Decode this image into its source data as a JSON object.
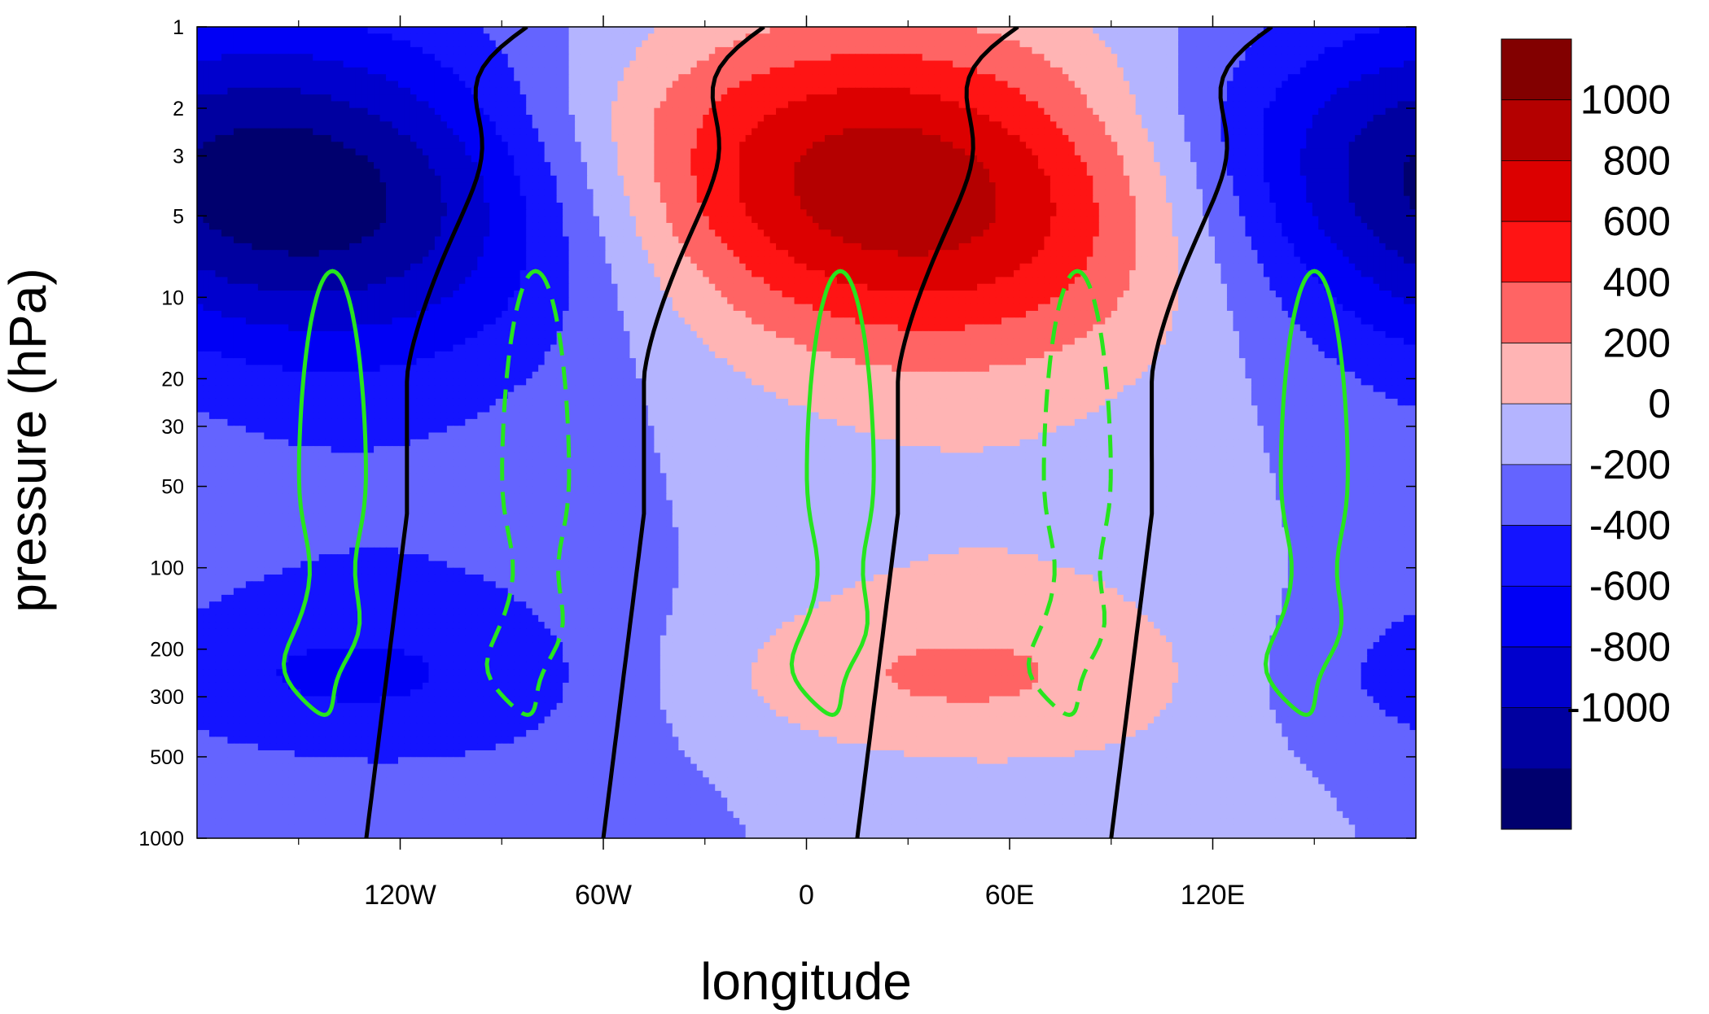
{
  "chart_data": {
    "type": "heatmap",
    "title": "",
    "xlabel": "longitude",
    "ylabel": "pressure (hPa)",
    "x_range": [
      -180,
      180
    ],
    "x_ticks": [
      {
        "value": -120,
        "label": "120W"
      },
      {
        "value": -60,
        "label": "60W"
      },
      {
        "value": 0,
        "label": "0"
      },
      {
        "value": 60,
        "label": "60E"
      },
      {
        "value": 120,
        "label": "120E"
      }
    ],
    "x_minor_ticks": [
      -150,
      -90,
      -30,
      30,
      90,
      150
    ],
    "y_scale": "log",
    "y_range": [
      1000,
      1
    ],
    "y_ticks": [
      {
        "value": 1,
        "label": "1"
      },
      {
        "value": 2,
        "label": "2"
      },
      {
        "value": 3,
        "label": "3"
      },
      {
        "value": 5,
        "label": "5"
      },
      {
        "value": 10,
        "label": "10"
      },
      {
        "value": 20,
        "label": "20"
      },
      {
        "value": 30,
        "label": "30"
      },
      {
        "value": 50,
        "label": "50"
      },
      {
        "value": 100,
        "label": "100"
      },
      {
        "value": 200,
        "label": "200"
      },
      {
        "value": 300,
        "label": "300"
      },
      {
        "value": 500,
        "label": "500"
      },
      {
        "value": 1000,
        "label": "1000"
      }
    ],
    "grid": false,
    "colorbar": {
      "placement": "right",
      "levels": [
        -1000,
        -800,
        -600,
        -400,
        -200,
        0,
        200,
        400,
        600,
        800,
        1000
      ],
      "labels": [
        "1000",
        "800",
        "600",
        "400",
        "200",
        "0",
        "-200",
        "-400",
        "-600",
        "-800",
        "-1000"
      ],
      "colors": [
        "#00006e",
        "#0000a0",
        "#0000cd",
        "#0000f5",
        "#1414ff",
        "#6464ff",
        "#b4b4ff",
        "#ffb4b4",
        "#ff6464",
        "#ff1414",
        "#dc0000",
        "#b40000",
        "#820000"
      ]
    },
    "field": {
      "description_values": "wavenumber-1 anomaly, amplitude ~1150 near 3-5 hPa",
      "amplitude_upper": 1150,
      "peak_pressure": 4,
      "phase_lon_at_top": 20,
      "lower_cell_amplitude": 260,
      "lower_cell_pressure": 260
    },
    "black_contours": {
      "color": "#000000",
      "count": 4,
      "lon_at_1000hPa": [
        -130,
        -60,
        15,
        90
      ]
    },
    "green_contours": {
      "color": "#27e51e",
      "solid_centers_lon": [
        -140,
        10,
        150
      ],
      "dashed_centers_lon": [
        -80,
        80
      ],
      "pressure_top": 8,
      "pressure_bottom": 350
    }
  }
}
